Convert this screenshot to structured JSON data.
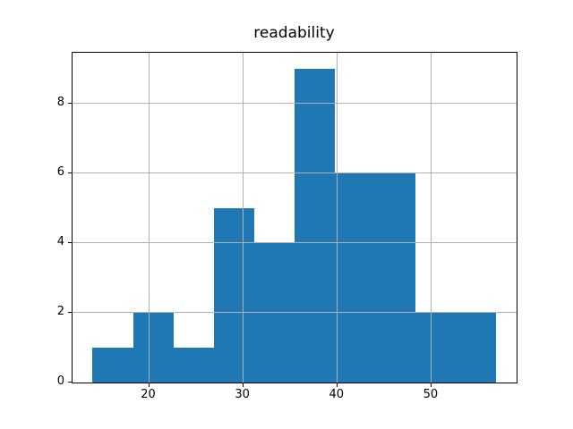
{
  "figure": {
    "title": "readability"
  },
  "chart_data": {
    "type": "histogram",
    "title": "readability",
    "bin_edges": [
      14.0,
      18.29,
      22.58,
      26.87,
      31.16,
      35.45,
      39.74,
      44.03,
      48.32,
      52.61,
      56.9
    ],
    "counts": [
      1,
      2,
      1,
      5,
      4,
      9,
      6,
      6,
      2,
      2
    ],
    "xticks": [
      20,
      30,
      40,
      50
    ],
    "yticks": [
      0,
      2,
      4,
      6,
      8
    ],
    "xlim": [
      11.86,
      59.05
    ],
    "ylim": [
      0,
      9.45
    ],
    "xlabel": "",
    "ylabel": "",
    "grid": true,
    "legend": null,
    "bar_color": "#1f77b4",
    "grid_color": "#b0b0b0",
    "spine_color": "#000000",
    "background_color": "#ffffff"
  }
}
